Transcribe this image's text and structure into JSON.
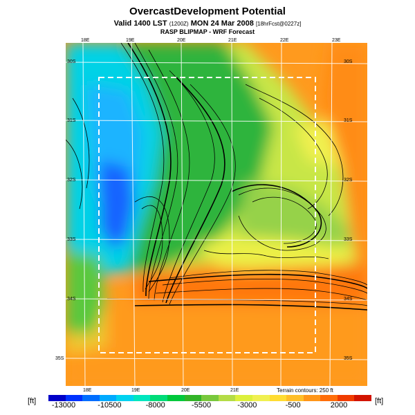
{
  "title": "OvercastDevelopment Potential",
  "subtitle_main": "Valid 1400 LST",
  "subtitle_small1": "(1200Z)",
  "subtitle_date": "MON 24 Mar 2008",
  "subtitle_small2": "[18hrFcst@0227z]",
  "subtitle2": "RASP BLIPMAP - WRF Forecast",
  "lon_labels": [
    "18E",
    "19E",
    "20E",
    "21E",
    "22E",
    "23E"
  ],
  "lat_labels_left": [
    "30S",
    "31S",
    "32S",
    "33S",
    "34S",
    "35S"
  ],
  "lat_labels_right": [
    "30S",
    "31S",
    "32S",
    "33S",
    "34S",
    "35S"
  ],
  "terrain_note": "Terrain contours: 250 ft",
  "colorbar": {
    "unit_left": "[ft]",
    "unit_right": "[ft]",
    "tick_labels": [
      "-13000",
      "-10500",
      "-8000",
      "-5500",
      "-3000",
      "-500",
      "2000"
    ],
    "colors": [
      "#0000c8",
      "#0032ff",
      "#006eff",
      "#00aaff",
      "#00d2f0",
      "#00e6be",
      "#00dc78",
      "#00c83c",
      "#32b428",
      "#78c83c",
      "#b4dc46",
      "#dcf03c",
      "#f0f050",
      "#ffdc32",
      "#ffbe28",
      "#ff9619",
      "#ff6e0a",
      "#f03c00",
      "#d21400"
    ]
  }
}
